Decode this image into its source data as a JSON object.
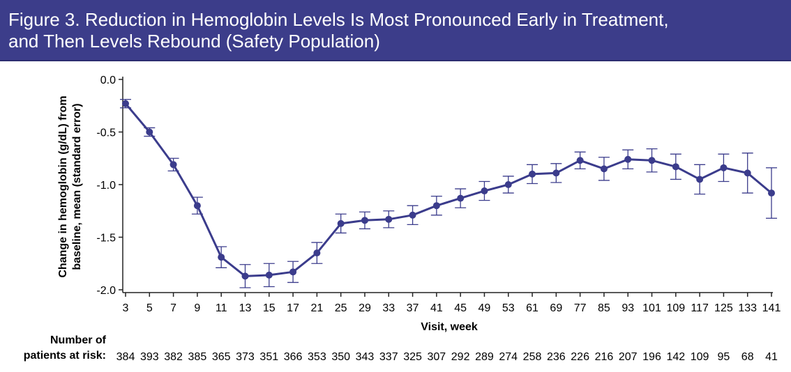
{
  "figure": {
    "title_line1": "Figure 3. Reduction in Hemoglobin Levels Is Most Pronounced Early in Treatment,",
    "title_line2": "and Then Levels Rebound (Safety Population)"
  },
  "colors": {
    "banner": "#3c3d8a",
    "series": "#3b3c8c",
    "axis": "#222222"
  },
  "chart_data": {
    "type": "line",
    "xlabel": "Visit, week",
    "ylabel_line1": "Change in hemoglobin (g/dL) from",
    "ylabel_line2": "baseline, mean (standard error)",
    "ylim": [
      -2.0,
      0.0
    ],
    "yticks": [
      0.0,
      -0.5,
      -1.0,
      -1.5,
      -2.0
    ],
    "ytick_labels": [
      "0.0",
      "-0.5",
      "-1.0",
      "-1.5",
      "-2.0"
    ],
    "grid": false,
    "x": [
      "3",
      "5",
      "7",
      "9",
      "11",
      "13",
      "15",
      "17",
      "21",
      "25",
      "29",
      "33",
      "37",
      "41",
      "45",
      "49",
      "53",
      "61",
      "69",
      "77",
      "85",
      "93",
      "101",
      "109",
      "117",
      "125",
      "133",
      "141"
    ],
    "series": [
      {
        "values": [
          -0.23,
          -0.5,
          -0.81,
          -1.2,
          -1.69,
          -1.87,
          -1.86,
          -1.83,
          -1.65,
          -1.37,
          -1.34,
          -1.33,
          -1.29,
          -1.2,
          -1.13,
          -1.06,
          -1.0,
          -0.9,
          -0.89,
          -0.77,
          -0.85,
          -0.76,
          -0.77,
          -0.83,
          -0.95,
          -0.84,
          -0.89,
          -1.08
        ],
        "error": [
          0.04,
          0.04,
          0.06,
          0.08,
          0.1,
          0.11,
          0.11,
          0.1,
          0.1,
          0.09,
          0.08,
          0.08,
          0.09,
          0.09,
          0.09,
          0.09,
          0.08,
          0.09,
          0.09,
          0.08,
          0.11,
          0.09,
          0.11,
          0.12,
          0.14,
          0.13,
          0.19,
          0.24
        ]
      }
    ]
  },
  "risk_table": {
    "label_line1": "Number of",
    "label_line2": "patients at risk:",
    "values": [
      "384",
      "393",
      "382",
      "385",
      "365",
      "373",
      "351",
      "366",
      "353",
      "350",
      "343",
      "337",
      "325",
      "307",
      "292",
      "289",
      "274",
      "258",
      "236",
      "226",
      "216",
      "207",
      "196",
      "142",
      "109",
      "95",
      "68",
      "41"
    ]
  }
}
